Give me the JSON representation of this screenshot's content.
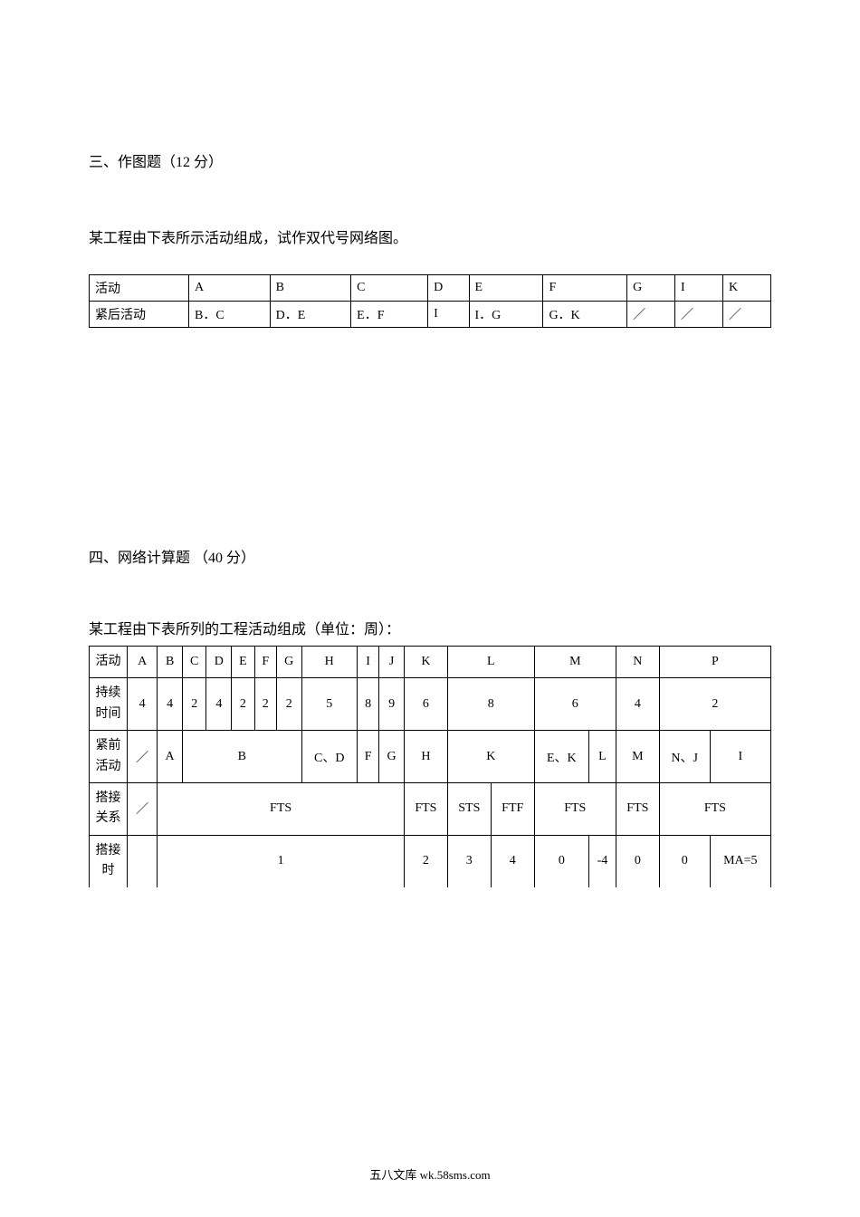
{
  "section3": {
    "title": "三、作图题（12 分）",
    "subtitle": "某工程由下表所示活动组成，试作双代号网络图。",
    "row1_label": "活动",
    "row1": [
      "A",
      "B",
      "C",
      "D",
      "E",
      "F",
      "G",
      "I",
      "K"
    ],
    "row2_label": "紧后活动",
    "row2": [
      "B．C",
      "D．E",
      "E．F",
      "I",
      "I．G",
      "G．K",
      "／",
      "／",
      "／"
    ]
  },
  "section4": {
    "title": "四、网络计算题 （40 分）",
    "subtitle": "某工程由下表所列的工程活动组成（单位：周）：",
    "labels": {
      "activity": "活动",
      "duration": "持续时间",
      "predecessor": "紧前活动",
      "overlap_rel": "搭接关系",
      "overlap_time": "搭接时"
    },
    "activities": [
      "A",
      "B",
      "C",
      "D",
      "E",
      "F",
      "G",
      "H",
      "I",
      "J",
      "K",
      "L",
      "M",
      "N",
      "P"
    ],
    "durations": [
      "4",
      "4",
      "2",
      "4",
      "2",
      "2",
      "2",
      "5",
      "8",
      "9",
      "6",
      "8",
      "6",
      "4",
      "2"
    ],
    "predecessors": {
      "A": "／",
      "B": "A",
      "CDEFG": "B",
      "H": "C、D",
      "I": "F",
      "J": "G",
      "K": "H",
      "L": "K",
      "M1": "E、K",
      "M2": "L",
      "N": "M",
      "P1": "N、J",
      "P2": "I"
    },
    "overlap_rel": {
      "A": "／",
      "group1": "FTS",
      "K": "FTS",
      "L1": "STS",
      "L2": "FTF",
      "M": "FTS",
      "N": "FTS",
      "P": "FTS"
    },
    "overlap_time": {
      "group1": "1",
      "K": "2",
      "L1": "3",
      "L2": "4",
      "M1": "0",
      "M2": "-4",
      "N": "0",
      "P1": "0",
      "P2": "MA=5"
    }
  },
  "footer": "五八文库 wk.58sms.com",
  "styling": {
    "page_bg": "#ffffff",
    "text_color": "#000000",
    "border_color": "#000000",
    "body_fontsize": 16,
    "table_fontsize": 14,
    "footer_fontsize": 13
  }
}
